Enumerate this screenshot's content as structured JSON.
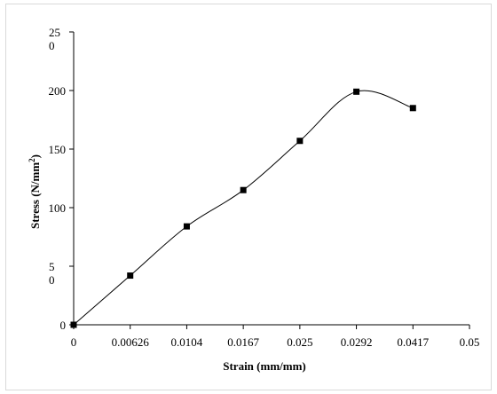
{
  "chart_data": {
    "type": "line",
    "title": "",
    "xlabel": "Strain (mm/mm)",
    "ylabel": "Stress (N/mm",
    "ylabel_superscript": "2",
    "ylabel_close": ")",
    "x_tick_labels": [
      "0",
      "0.00626",
      "0.0104",
      "0.0167",
      "0.025",
      "0.0292",
      "0.0417",
      "0.05"
    ],
    "y_tick_labels": [
      {
        "value": 0,
        "lines": [
          "0"
        ]
      },
      {
        "value": 50,
        "lines": [
          "5",
          "0"
        ]
      },
      {
        "value": 100,
        "lines": [
          "100"
        ]
      },
      {
        "value": 150,
        "lines": [
          "150"
        ]
      },
      {
        "value": 200,
        "lines": [
          "200"
        ]
      },
      {
        "value": 250,
        "lines": [
          "25",
          "0"
        ]
      }
    ],
    "ylim": [
      0,
      250
    ],
    "grid": false,
    "legend": "none",
    "series": [
      {
        "x": [
          "0",
          "0.00626",
          "0.0104",
          "0.0167",
          "0.025",
          "0.0292",
          "0.0417"
        ],
        "values": [
          0,
          42,
          84,
          115,
          157,
          199,
          185
        ],
        "color": "#000000",
        "marker": "square"
      }
    ]
  }
}
